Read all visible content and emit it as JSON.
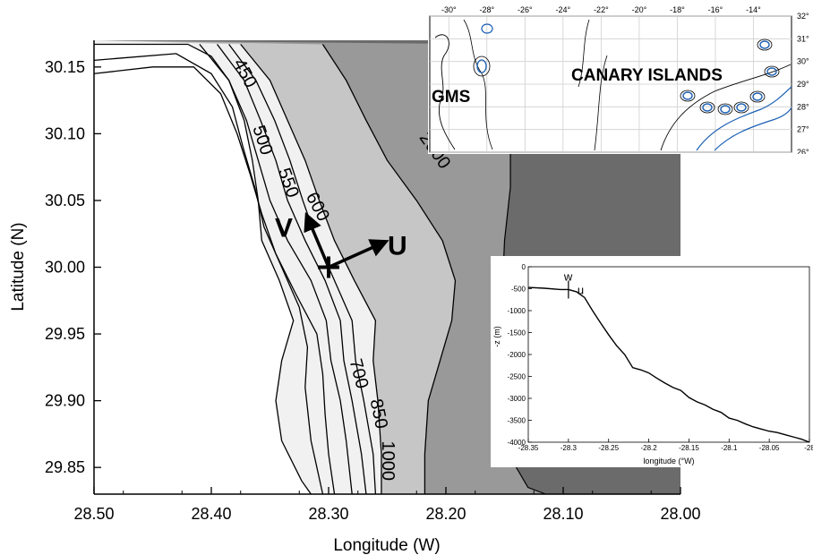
{
  "chart_data": [
    {
      "type": "contour",
      "xlabel": "Longitude (W)",
      "ylabel": "Latitude (N)",
      "xlim": [
        28.5,
        28.0
      ],
      "ylim": [
        29.83,
        30.17
      ],
      "x_ticks": [
        "28.50",
        "28.40",
        "28.30",
        "28.20",
        "28.10",
        "28.00"
      ],
      "y_ticks": [
        "30.15",
        "30.10",
        "30.05",
        "30.00",
        "29.95",
        "29.90",
        "29.85"
      ],
      "contour_levels": [
        450,
        500,
        550,
        600,
        700,
        850,
        1000,
        2000
      ],
      "contour_labels": [
        "450",
        "500",
        "550",
        "600",
        "700",
        "850",
        "1000",
        "2000"
      ],
      "shading": [
        {
          "band": "shallower than 1000 m",
          "color": "#f1f1f1"
        },
        {
          "band": "1000-2000 m",
          "color": "#c6c6c6"
        },
        {
          "band": "2000-3000 m",
          "color": "#999999"
        },
        {
          "band": "deeper than 3000 m",
          "color": "#6b6b6b"
        }
      ],
      "mooring": {
        "lon": 28.3,
        "lat": 30.0
      },
      "axis_labels": {
        "u": "U",
        "v": "V"
      },
      "grid": false
    },
    {
      "type": "map",
      "x_ticks": [
        "-30°",
        "-28°",
        "-26°",
        "-24°",
        "-22°",
        "-20°",
        "-18°",
        "-16°",
        "-14°"
      ],
      "y_ticks": [
        "32°",
        "31°",
        "30°",
        "29°",
        "28°",
        "27°",
        "26°"
      ],
      "xlim": [
        -31,
        -12
      ],
      "ylim": [
        26,
        32
      ],
      "annotations": [
        "GMS",
        "CANARY ISLANDS"
      ],
      "grid": true
    },
    {
      "type": "line",
      "xlabel": "longitude (°W)",
      "ylabel": "-z (m)",
      "xlim": [
        -28.35,
        -28.0
      ],
      "ylim": [
        -4000,
        0
      ],
      "x_ticks": [
        "-28.35",
        "-28.3",
        "-28.25",
        "-28.2",
        "-28.15",
        "-28.1",
        "-28.05",
        "-28"
      ],
      "y_ticks": [
        "0",
        "-500",
        "-1000",
        "-1500",
        "-2000",
        "-2500",
        "-3000",
        "-3500",
        "-4000"
      ],
      "annotations": [
        "w",
        "u"
      ],
      "series": [
        {
          "x": [
            -28.35,
            -28.33,
            -28.31,
            -28.3,
            -28.29,
            -28.28,
            -28.27,
            -28.26,
            -28.25,
            -28.24,
            -28.23,
            -28.22,
            -28.21,
            -28.2,
            -28.19,
            -28.18,
            -28.17,
            -28.16,
            -28.15,
            -28.14,
            -28.13,
            -28.12,
            -28.11,
            -28.1,
            -28.09,
            -28.08,
            -28.07,
            -28.06,
            -28.05,
            -28.04,
            -28.03,
            -28.02,
            -28.01,
            -28.0
          ],
          "y": [
            -470,
            -490,
            -520,
            -520,
            -570,
            -700,
            -1000,
            -1280,
            -1550,
            -1800,
            -2000,
            -2300,
            -2350,
            -2420,
            -2540,
            -2650,
            -2750,
            -2820,
            -2980,
            -3080,
            -3150,
            -3250,
            -3320,
            -3450,
            -3500,
            -3580,
            -3650,
            -3700,
            -3750,
            -3780,
            -3830,
            -3880,
            -3930,
            -4000
          ]
        }
      ]
    }
  ]
}
